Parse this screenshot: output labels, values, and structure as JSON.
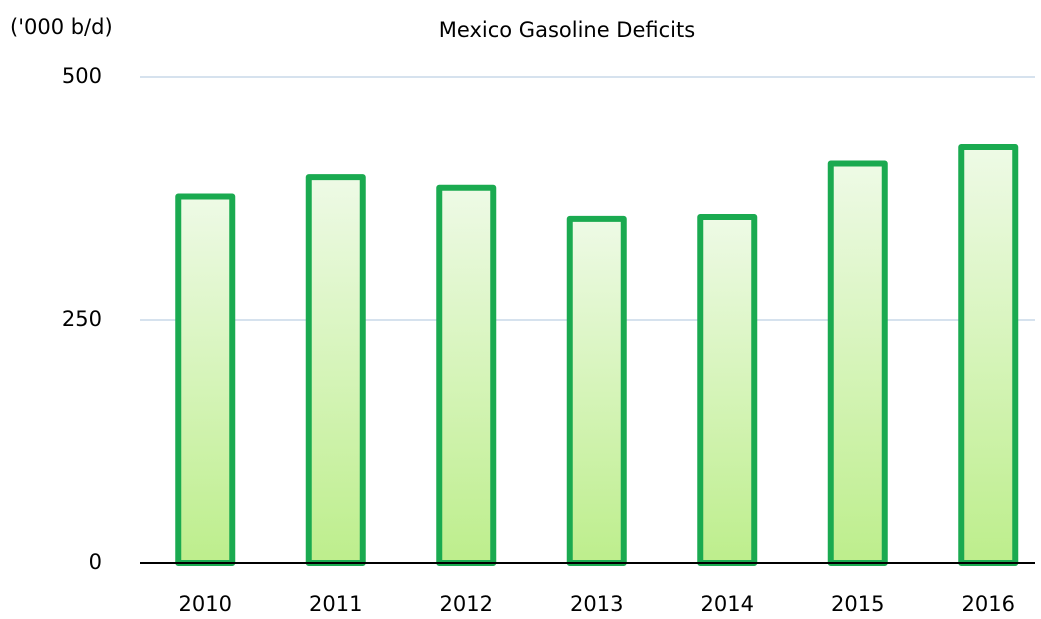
{
  "chart_data": {
    "type": "bar",
    "title": "Mexico Gasoline Deficits",
    "y_label": "('000 b/d)",
    "categories": [
      "2010",
      "2011",
      "2012",
      "2013",
      "2014",
      "2015",
      "2016"
    ],
    "values": [
      377,
      397,
      386,
      354,
      356,
      411,
      428
    ],
    "color": "#1aaa50",
    "ylim": [
      0,
      500
    ],
    "yticks": [
      0,
      250,
      500
    ],
    "grid": true
  }
}
